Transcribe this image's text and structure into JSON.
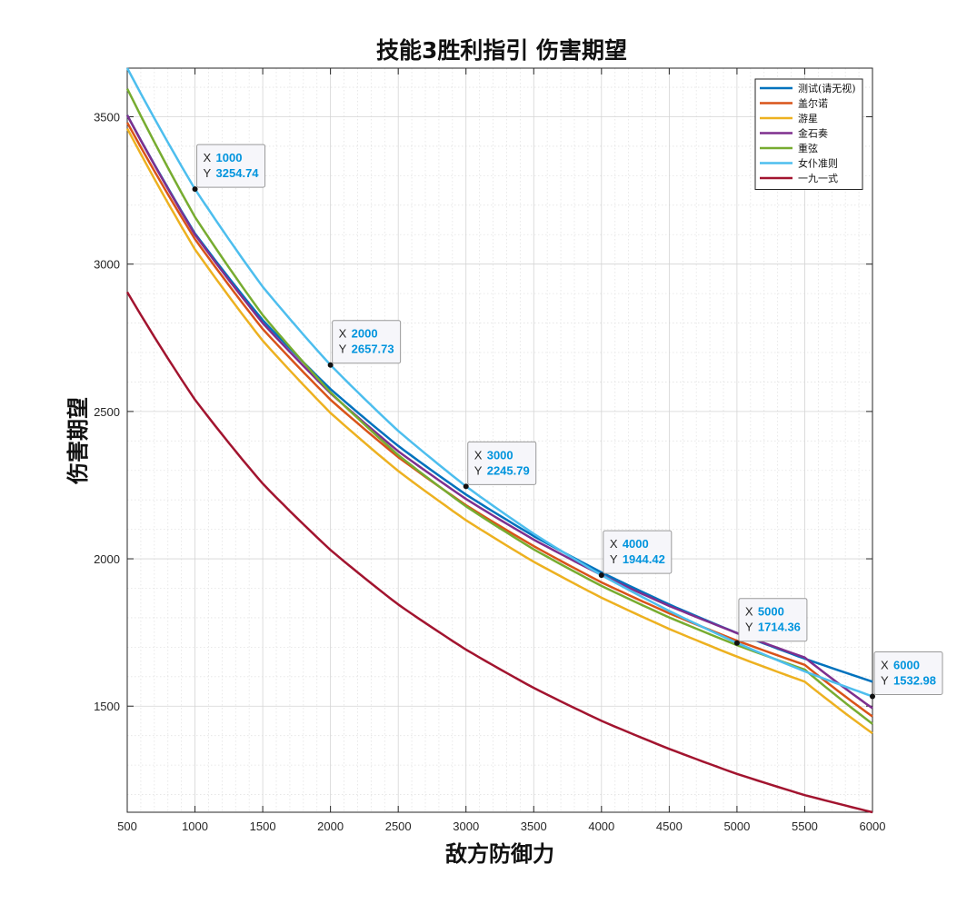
{
  "chart_data": {
    "type": "line",
    "title": "技能3胜利指引 伤害期望",
    "xlabel": "敌方防御力",
    "ylabel": "伤害期望",
    "xlim": [
      500,
      6000
    ],
    "ylim": [
      1140,
      3665
    ],
    "xticks": [
      500,
      1000,
      1500,
      2000,
      2500,
      3000,
      3500,
      4000,
      4500,
      5000,
      5500,
      6000
    ],
    "yticks": [
      1500,
      2000,
      2500,
      3000,
      3500
    ],
    "grid": true,
    "minor_grid": true,
    "legend_position": "top-right",
    "x": [
      500,
      1000,
      1500,
      2000,
      2500,
      3000,
      3500,
      4000,
      4500,
      5000,
      5500,
      6000
    ],
    "series": [
      {
        "name": "测试(请无视)",
        "color": "#0072BD",
        "values": [
          3505,
          3104,
          2810,
          2576,
          2383,
          2218,
          2077,
          1954,
          1845,
          1748,
          1661,
          1583
        ]
      },
      {
        "name": "盖尔诺",
        "color": "#D95319",
        "values": [
          3480,
          3085,
          2780,
          2540,
          2345,
          2182,
          2043,
          1920,
          1815,
          1722,
          1640,
          1465
        ]
      },
      {
        "name": "游星",
        "color": "#EDB120",
        "values": [
          3460,
          3050,
          2740,
          2495,
          2298,
          2131,
          1990,
          1868,
          1762,
          1668,
          1583,
          1408
        ]
      },
      {
        "name": "金石奏",
        "color": "#7E2F8E",
        "values": [
          3505,
          3100,
          2800,
          2562,
          2365,
          2203,
          2065,
          1945,
          1840,
          1748,
          1665,
          1493
        ]
      },
      {
        "name": "重弦",
        "color": "#77AC30",
        "values": [
          3595,
          3160,
          2827,
          2565,
          2352,
          2178,
          2032,
          1908,
          1801,
          1707,
          1624,
          1440
        ]
      },
      {
        "name": "女仆准则",
        "color": "#4DBEEE",
        "values": [
          3665,
          3254.74,
          2923,
          2657.73,
          2434,
          2245.79,
          2085,
          1944.42,
          1823,
          1714.36,
          1618,
          1532.98
        ]
      },
      {
        "name": "一九一式",
        "color": "#A2142F",
        "values": [
          2905,
          2540,
          2255,
          2030,
          1845,
          1692,
          1562,
          1450,
          1355,
          1270,
          1198,
          1140
        ]
      }
    ],
    "datatips": [
      {
        "series": "女仆准则",
        "x_label": "X",
        "y_label": "Y",
        "x": 1000,
        "y": 3254.74,
        "x_text": "1000",
        "y_text": "3254.74"
      },
      {
        "series": "女仆准则",
        "x_label": "X",
        "y_label": "Y",
        "x": 2000,
        "y": 2657.73,
        "x_text": "2000",
        "y_text": "2657.73"
      },
      {
        "series": "女仆准则",
        "x_label": "X",
        "y_label": "Y",
        "x": 3000,
        "y": 2245.79,
        "x_text": "3000",
        "y_text": "2245.79"
      },
      {
        "series": "女仆准则",
        "x_label": "X",
        "y_label": "Y",
        "x": 4000,
        "y": 1944.42,
        "x_text": "4000",
        "y_text": "1944.42"
      },
      {
        "series": "女仆准则",
        "x_label": "X",
        "y_label": "Y",
        "x": 5000,
        "y": 1714.36,
        "x_text": "5000",
        "y_text": "1714.36"
      },
      {
        "series": "女仆准则",
        "x_label": "X",
        "y_label": "Y",
        "x": 6000,
        "y": 1532.98,
        "x_text": "6000",
        "y_text": "1532.98"
      }
    ]
  }
}
